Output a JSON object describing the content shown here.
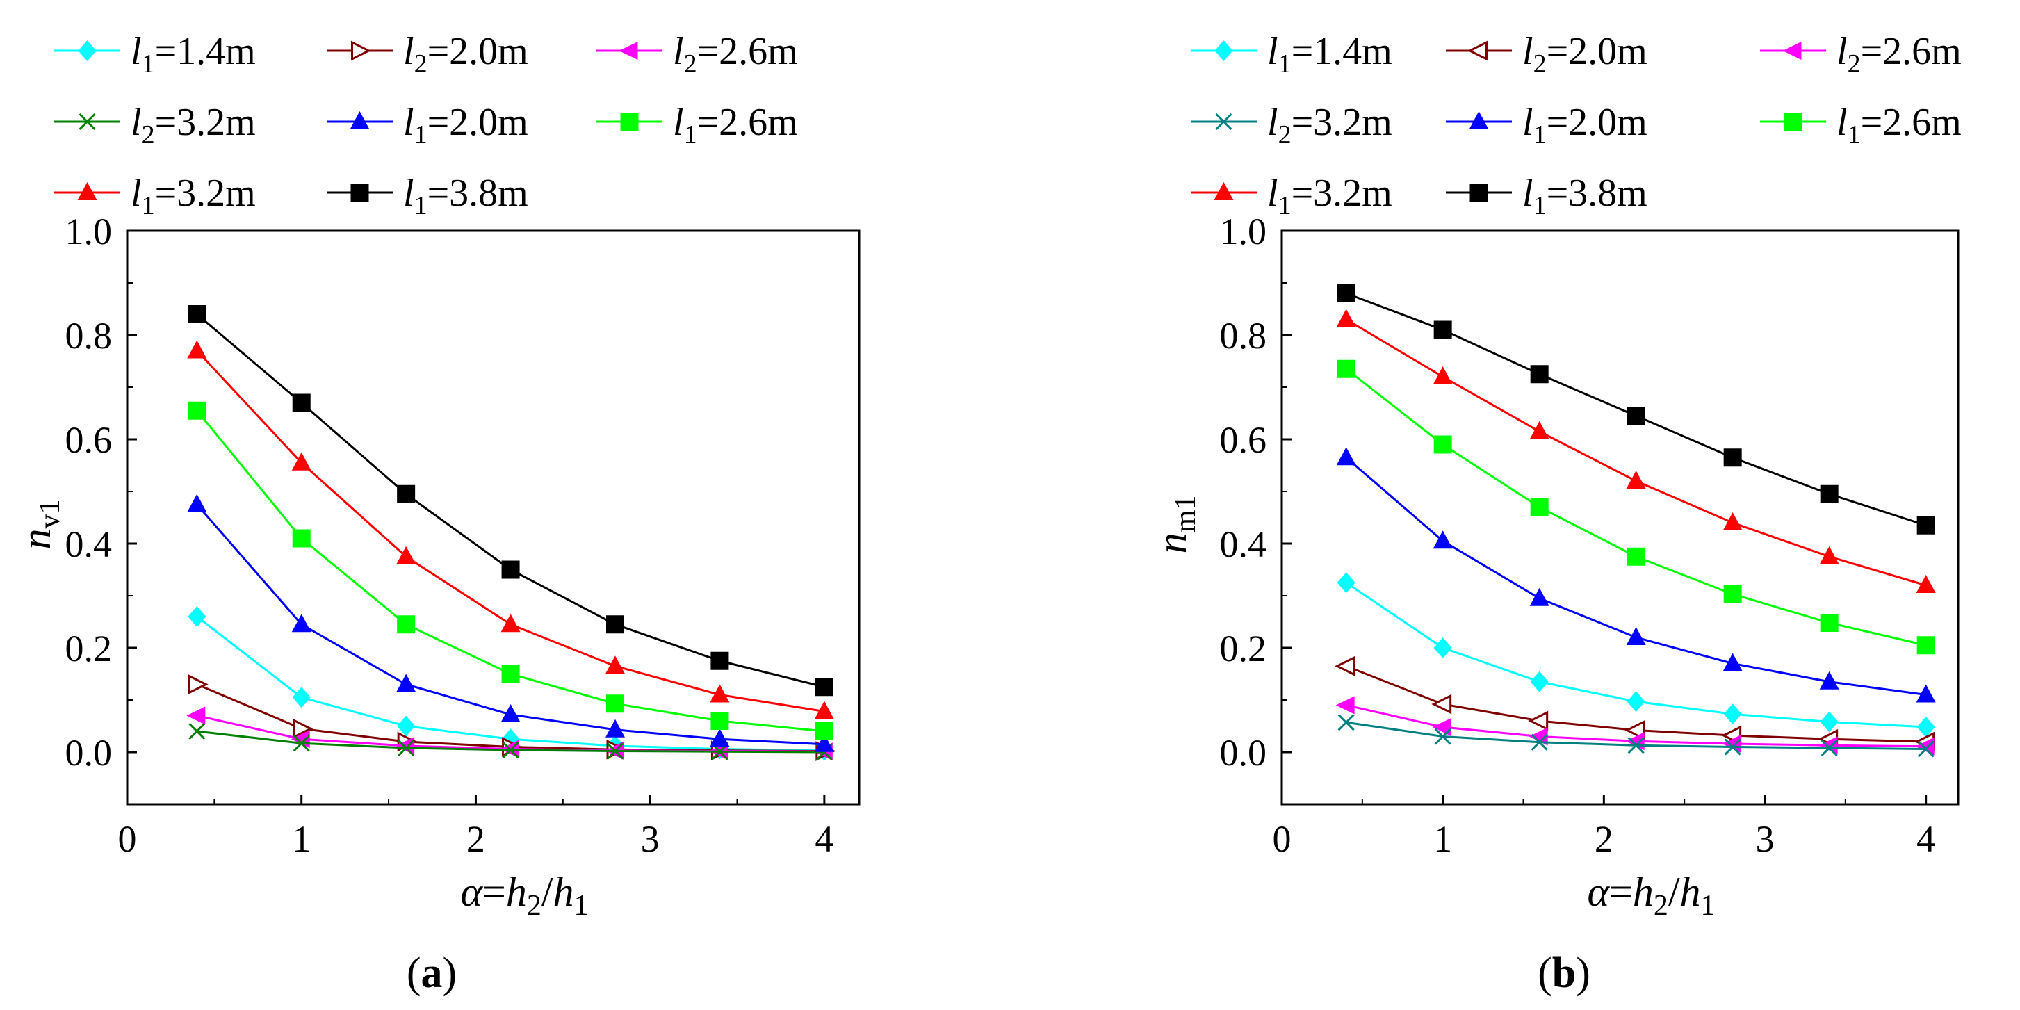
{
  "chart_data": [
    {
      "type": "line",
      "panel_label": {
        "open": "(",
        "letter": "a",
        "close": ")"
      },
      "xlabel": {
        "alpha": "α",
        "eq": "=",
        "h2": "h",
        "sub2": "2",
        "slash": "/",
        "h1": "h",
        "sub1": "1"
      },
      "ylabel": {
        "main": "n",
        "sub": "v1"
      },
      "xlim": [
        0,
        4.2
      ],
      "ylim": [
        -0.1,
        1.0
      ],
      "xticks": [
        "0",
        "1",
        "2",
        "3",
        "4"
      ],
      "yticks": [
        "0.0",
        "0.2",
        "0.4",
        "0.6",
        "0.8",
        "1.0"
      ],
      "x": [
        0.4,
        1.0,
        1.6,
        2.2,
        2.8,
        3.4,
        4.0
      ],
      "series": [
        {
          "var": "l",
          "sub": "1",
          "value": "=1.4m",
          "color": "#00FFFF",
          "marker": "diamond",
          "values": [
            0.26,
            0.105,
            0.05,
            0.025,
            0.012,
            0.006,
            0.003
          ]
        },
        {
          "var": "l",
          "sub": "2",
          "value": "=2.0m",
          "color": "#800000",
          "marker": "tri-right-open",
          "values": [
            0.13,
            0.045,
            0.02,
            0.01,
            0.005,
            0.003,
            0.002
          ]
        },
        {
          "var": "l",
          "sub": "2",
          "value": "=2.6m",
          "color": "#FF00FF",
          "marker": "tri-left",
          "values": [
            0.07,
            0.025,
            0.012,
            0.006,
            0.003,
            0.002,
            0.001
          ]
        },
        {
          "var": "l",
          "sub": "2",
          "value": "=3.2m",
          "color": "#008000",
          "marker": "x",
          "values": [
            0.04,
            0.017,
            0.008,
            0.004,
            0.002,
            0.001,
            0.0
          ]
        },
        {
          "var": "l",
          "sub": "1",
          "value": "=2.0m",
          "color": "#0000FF",
          "marker": "triangle",
          "values": [
            0.475,
            0.245,
            0.13,
            0.072,
            0.043,
            0.025,
            0.015
          ]
        },
        {
          "var": "l",
          "sub": "1",
          "value": "=2.6m",
          "color": "#00FF00",
          "marker": "square",
          "values": [
            0.655,
            0.41,
            0.245,
            0.15,
            0.093,
            0.06,
            0.04
          ]
        },
        {
          "var": "l",
          "sub": "1",
          "value": "=3.2m",
          "color": "#FF0000",
          "marker": "triangle",
          "values": [
            0.77,
            0.555,
            0.375,
            0.245,
            0.165,
            0.11,
            0.078
          ]
        },
        {
          "var": "l",
          "sub": "1",
          "value": "=3.8m",
          "color": "#000000",
          "marker": "square",
          "values": [
            0.84,
            0.67,
            0.495,
            0.35,
            0.245,
            0.175,
            0.125
          ]
        }
      ]
    },
    {
      "type": "line",
      "panel_label": {
        "open": "(",
        "letter": "b",
        "close": ")"
      },
      "xlabel": {
        "alpha": "α",
        "eq": "=",
        "h2": "h",
        "sub2": "2",
        "slash": "/",
        "h1": "h",
        "sub1": "1"
      },
      "ylabel": {
        "main": "n",
        "sub": "m1"
      },
      "xlim": [
        0,
        4.2
      ],
      "ylim": [
        -0.1,
        1.0
      ],
      "xticks": [
        "0",
        "1",
        "2",
        "3",
        "4"
      ],
      "yticks": [
        "0.0",
        "0.2",
        "0.4",
        "0.6",
        "0.8",
        "1.0"
      ],
      "x": [
        0.4,
        1.0,
        1.6,
        2.2,
        2.8,
        3.4,
        4.0
      ],
      "series": [
        {
          "var": "l",
          "sub": "1",
          "value": "=1.4m",
          "color": "#00FFFF",
          "marker": "diamond",
          "values": [
            0.325,
            0.2,
            0.135,
            0.097,
            0.073,
            0.058,
            0.048
          ]
        },
        {
          "var": "l",
          "sub": "2",
          "value": "=2.0m",
          "color": "#800000",
          "marker": "tri-left-open",
          "values": [
            0.165,
            0.092,
            0.06,
            0.042,
            0.032,
            0.025,
            0.02
          ]
        },
        {
          "var": "l",
          "sub": "2",
          "value": "=2.6m",
          "color": "#FF00FF",
          "marker": "tri-left",
          "values": [
            0.09,
            0.048,
            0.03,
            0.021,
            0.016,
            0.013,
            0.011
          ]
        },
        {
          "var": "l",
          "sub": "2",
          "value": "=3.2m",
          "color": "#008080",
          "marker": "x",
          "values": [
            0.057,
            0.03,
            0.019,
            0.013,
            0.01,
            0.008,
            0.006
          ]
        },
        {
          "var": "l",
          "sub": "1",
          "value": "=2.0m",
          "color": "#0000FF",
          "marker": "triangle",
          "values": [
            0.565,
            0.405,
            0.295,
            0.22,
            0.17,
            0.135,
            0.11
          ]
        },
        {
          "var": "l",
          "sub": "1",
          "value": "=2.6m",
          "color": "#00FF00",
          "marker": "square",
          "values": [
            0.735,
            0.59,
            0.47,
            0.375,
            0.303,
            0.248,
            0.205
          ]
        },
        {
          "var": "l",
          "sub": "1",
          "value": "=3.2m",
          "color": "#FF0000",
          "marker": "triangle",
          "values": [
            0.83,
            0.72,
            0.615,
            0.52,
            0.44,
            0.375,
            0.32
          ]
        },
        {
          "var": "l",
          "sub": "1",
          "value": "=3.8m",
          "color": "#000000",
          "marker": "square",
          "values": [
            0.88,
            0.81,
            0.725,
            0.645,
            0.565,
            0.495,
            0.435
          ]
        }
      ]
    }
  ]
}
